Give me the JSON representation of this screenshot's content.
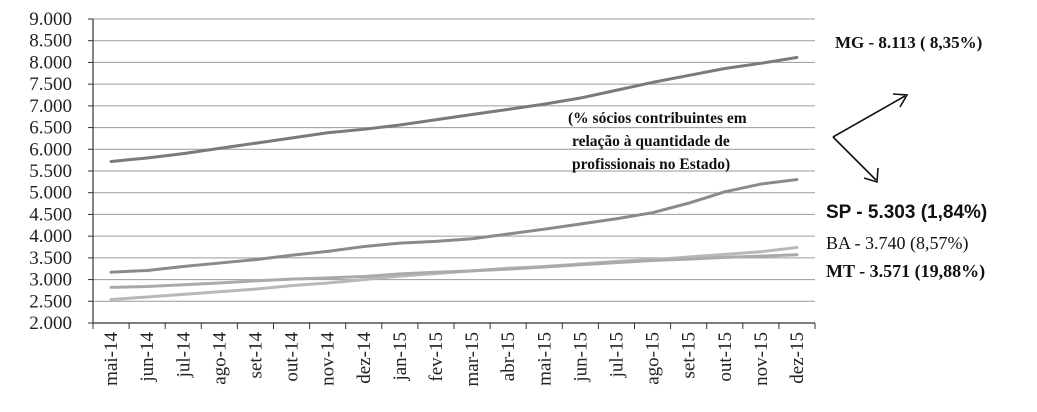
{
  "chart_data": {
    "type": "line",
    "categories": [
      "mai-14",
      "jun-14",
      "jul-14",
      "ago-14",
      "set-14",
      "out-14",
      "nov-14",
      "dez-14",
      "jan-15",
      "fev-15",
      "mar-15",
      "abr-15",
      "mai-15",
      "jun-15",
      "jul-15",
      "ago-15",
      "set-15",
      "out-15",
      "nov-15",
      "dez-15"
    ],
    "y_ticks": [
      "2.000",
      "2.500",
      "3.000",
      "3.500",
      "4.000",
      "4.500",
      "5.000",
      "5.500",
      "6.000",
      "6.500",
      "7.000",
      "7.500",
      "8.000",
      "8.500",
      "9.000"
    ],
    "ylim": [
      2000,
      9000
    ],
    "grid": true,
    "series": [
      {
        "name": "MG",
        "label": "MG - 8.113 ( 8,35%)",
        "color": "#7a7a7a",
        "values": [
          5720,
          5800,
          5900,
          6020,
          6140,
          6260,
          6380,
          6460,
          6560,
          6680,
          6800,
          6920,
          7040,
          7180,
          7360,
          7540,
          7700,
          7860,
          7980,
          8113
        ]
      },
      {
        "name": "SP",
        "label": "SP - 5.303 (1,84%)",
        "color": "#8a8a8a",
        "values": [
          3170,
          3210,
          3300,
          3380,
          3460,
          3560,
          3650,
          3760,
          3840,
          3880,
          3940,
          4050,
          4160,
          4280,
          4400,
          4540,
          4760,
          5020,
          5200,
          5303
        ]
      },
      {
        "name": "BA",
        "label": "BA - 3.740 (8,57%)",
        "color": "#b8b8b8",
        "values": [
          2540,
          2600,
          2660,
          2720,
          2780,
          2860,
          2920,
          3000,
          3080,
          3140,
          3200,
          3260,
          3300,
          3360,
          3420,
          3460,
          3520,
          3580,
          3640,
          3740
        ]
      },
      {
        "name": "MT",
        "label": "MT - 3.571 (19,88%)",
        "color": "#aaaaaa",
        "values": [
          2820,
          2840,
          2880,
          2920,
          2970,
          3010,
          3040,
          3070,
          3130,
          3170,
          3200,
          3240,
          3290,
          3340,
          3390,
          3440,
          3470,
          3510,
          3540,
          3571
        ]
      }
    ],
    "annotation": [
      "(% sócios contribuintes em",
      "relação à quantidade de",
      "profissionais no Estado)"
    ]
  }
}
